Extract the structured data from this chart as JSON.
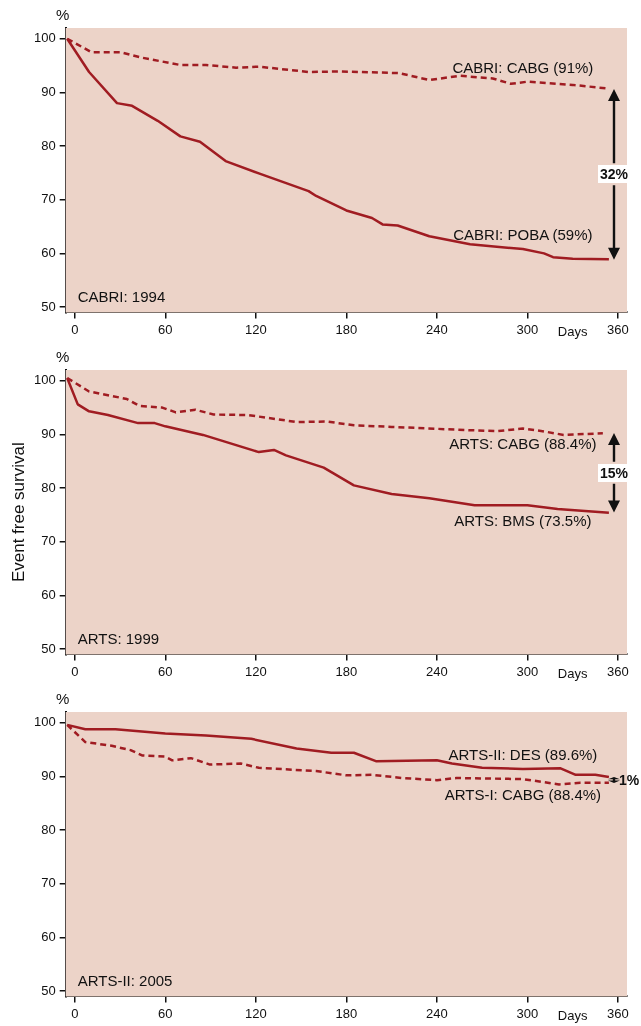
{
  "chart_data": [
    {
      "type": "line",
      "ylabel": "%",
      "xlabel": "Days",
      "xlim": [
        -6,
        366
      ],
      "ylim": [
        49,
        102
      ],
      "xticks": [
        0,
        60,
        120,
        180,
        240,
        300,
        360
      ],
      "yticks": [
        50,
        60,
        70,
        80,
        90,
        100
      ],
      "legend": false,
      "marker": "none",
      "annotations": [
        "CABRI: 1994",
        "32%"
      ],
      "series": [
        {
          "name": "CABRI: CABG (91%)",
          "color": "#a01c22",
          "line_style": "dashed",
          "x": [
            -5,
            11,
            30,
            44,
            70,
            87,
            107,
            122,
            155,
            175,
            215,
            235,
            255,
            277,
            289,
            300,
            330,
            354
          ],
          "values": [
            100,
            97.5,
            97.5,
            96.5,
            95.1,
            95.1,
            94.6,
            94.8,
            93.8,
            93.9,
            93.6,
            92.3,
            93.1,
            92.6,
            91.6,
            92,
            91.4,
            90.7
          ]
        },
        {
          "name": "CABRI: POBA (59%)",
          "color": "#a01c22",
          "line_style": "solid",
          "x": [
            -5,
            9.5,
            28,
            38,
            55,
            70,
            83,
            100,
            122,
            155,
            160,
            180,
            197,
            204,
            214,
            235,
            262,
            297,
            311,
            317,
            330,
            354
          ],
          "values": [
            100,
            93.8,
            88,
            87.5,
            84.7,
            81.8,
            80.8,
            77.2,
            74.9,
            71.6,
            70.7,
            68,
            66.6,
            65.4,
            65.2,
            63.2,
            61.7,
            60.8,
            60,
            59.3,
            59,
            58.9
          ]
        }
      ]
    },
    {
      "type": "line",
      "ylabel": "%",
      "xlabel": "Days",
      "xlim": [
        -6,
        366
      ],
      "ylim": [
        49,
        102
      ],
      "xticks": [
        0,
        60,
        120,
        180,
        240,
        300,
        360
      ],
      "yticks": [
        50,
        60,
        70,
        80,
        90,
        100
      ],
      "legend": false,
      "marker": "none",
      "annotations": [
        "ARTS: 1999",
        "15%",
        "Event free survival"
      ],
      "series": [
        {
          "name": "ARTS: CABG (88.4%)",
          "color": "#a01c22",
          "line_style": "dashed",
          "x": [
            -5,
            9.5,
            22,
            34.5,
            43,
            58,
            67,
            80,
            92,
            115,
            147,
            167,
            185,
            210,
            260,
            280,
            297,
            310,
            324,
            350
          ],
          "values": [
            100.5,
            98,
            97.3,
            96.6,
            95.3,
            95,
            94.1,
            94.6,
            93.7,
            93.6,
            92.3,
            92.4,
            91.7,
            91.4,
            90.8,
            90.6,
            91.1,
            90.6,
            89.9,
            90.2
          ]
        },
        {
          "name": "ARTS: BMS (73.5%)",
          "color": "#a01c22",
          "line_style": "solid",
          "x": [
            -5,
            2,
            9.5,
            22,
            42,
            53,
            60,
            85,
            122,
            132,
            140,
            165,
            185,
            210,
            235,
            265,
            300,
            320,
            354
          ],
          "values": [
            100.5,
            95.6,
            94.3,
            93.6,
            92.1,
            92.1,
            91.5,
            89.9,
            86.7,
            87.1,
            86.1,
            83.8,
            80.5,
            78.9,
            78.1,
            76.8,
            76.8,
            76.1,
            75.4
          ]
        }
      ]
    },
    {
      "type": "line",
      "ylabel": "%",
      "xlabel": "Days",
      "xlim": [
        -6,
        366
      ],
      "ylim": [
        49,
        102
      ],
      "xticks": [
        0,
        60,
        120,
        180,
        240,
        300,
        360
      ],
      "yticks": [
        50,
        60,
        70,
        80,
        90,
        100
      ],
      "legend": false,
      "marker": "none",
      "annotations": [
        "ARTS-II: 2005",
        "1%"
      ],
      "series": [
        {
          "name": "ARTS-II: DES (89.6%)",
          "color": "#a01c22",
          "line_style": "solid",
          "x": [
            -5,
            7,
            27,
            60,
            87,
            117,
            147,
            170,
            185,
            200,
            240,
            250,
            270,
            297,
            322,
            332,
            345,
            354
          ],
          "values": [
            99.6,
            98.8,
            98.8,
            98,
            97.6,
            97,
            95.2,
            94.4,
            94.4,
            92.8,
            93,
            92.4,
            91.6,
            91.4,
            91.5,
            90.3,
            90.3,
            89.9
          ]
        },
        {
          "name": "ARTS-I: CABG (88.4%)",
          "color": "#a01c22",
          "line_style": "dashed",
          "x": [
            -5,
            7,
            24.5,
            37,
            44.6,
            59.6,
            64.6,
            77,
            89.6,
            110,
            122,
            160,
            180,
            197,
            217,
            240,
            253,
            297,
            321,
            335,
            354
          ],
          "values": [
            99.6,
            96.4,
            95.7,
            94.9,
            93.9,
            93.7,
            93,
            93.4,
            92.2,
            92.4,
            91.6,
            91,
            90.2,
            90.3,
            89.7,
            89.3,
            89.7,
            89.5,
            88.5,
            88.8,
            88.8
          ]
        }
      ]
    }
  ]
}
